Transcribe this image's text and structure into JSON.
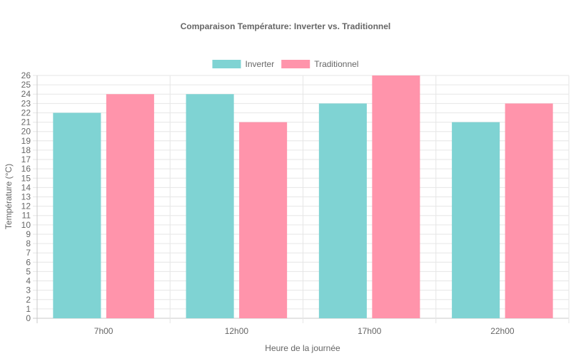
{
  "chart_data": {
    "type": "bar",
    "title": "Comparaison Température: Inverter vs. Traditionnel",
    "xlabel": "Heure de la journée",
    "ylabel": "Température (°C)",
    "categories": [
      "7h00",
      "12h00",
      "17h00",
      "22h00"
    ],
    "series": [
      {
        "name": "Inverter",
        "values": [
          22,
          24,
          23,
          21
        ],
        "color": "#7fd3d3",
        "border": "#4bc0c0"
      },
      {
        "name": "Traditionnel",
        "values": [
          24,
          21,
          26,
          23
        ],
        "color": "#ff94ab",
        "border": "#ff6384"
      }
    ],
    "ylim": [
      0,
      26
    ],
    "ytick_step": 1,
    "grid": true,
    "legend": "top-center"
  }
}
